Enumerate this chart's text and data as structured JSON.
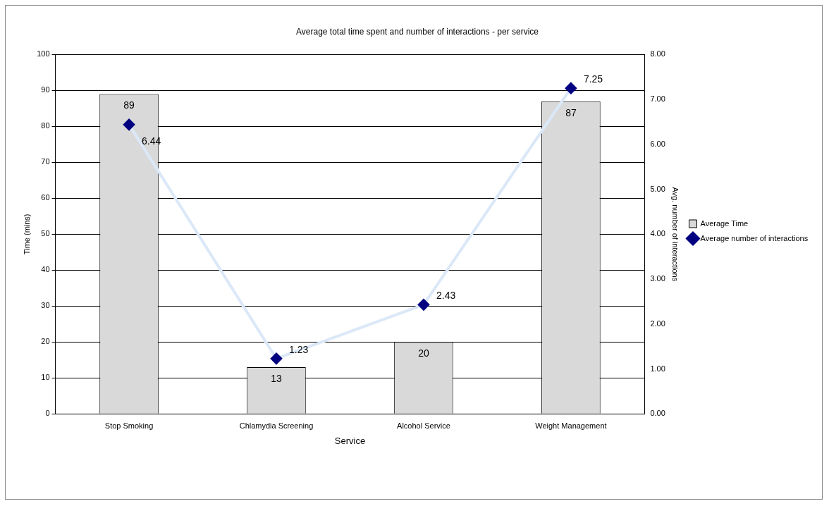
{
  "chart_data": {
    "type": "bar",
    "title": "Average total time spent and number of interactions - per service",
    "xlabel": "Service",
    "ylabel": "Time (mins)",
    "y2label": "Avg. number of interactions",
    "categories": [
      "Stop Smoking",
      "Chlamydia Screening",
      "Alcohol Service",
      "Weight Management"
    ],
    "series": [
      {
        "name": "Average Time",
        "color": "#d9d9d9",
        "values": [
          89,
          13,
          20,
          87
        ]
      },
      {
        "name": "Average number of interactions",
        "type": "line",
        "axis": "y2",
        "color": "#dbe8f8",
        "colors": [
          "#000080",
          "#000080",
          "#000080",
          "#000080"
        ],
        "values": [
          6.44,
          1.23,
          2.43,
          7.25
        ]
      }
    ],
    "ylim": [
      0,
      100
    ],
    "yticks": [
      0,
      10,
      20,
      30,
      40,
      50,
      60,
      70,
      80,
      90,
      100
    ],
    "y2lim": [
      0,
      8
    ],
    "y2ticks": [
      {
        "value": 0,
        "label": "0.00"
      },
      {
        "value": 1,
        "label": "1.00"
      },
      {
        "value": 2,
        "label": "2.00"
      },
      {
        "value": 3,
        "label": "3.00"
      },
      {
        "value": 4,
        "label": "4.00"
      },
      {
        "value": 5,
        "label": "5.00"
      },
      {
        "value": 6,
        "label": "6.00"
      },
      {
        "value": 7,
        "label": "7.00"
      },
      {
        "value": 8,
        "label": "8.00"
      }
    ],
    "grid": "y",
    "legend": "right",
    "marker": "diamond",
    "data_labels": true
  }
}
